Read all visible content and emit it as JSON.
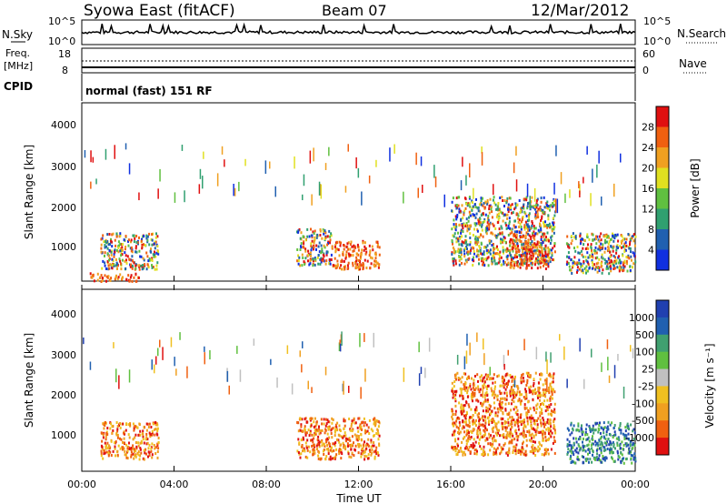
{
  "header": {
    "station": "Syowa East (fitACF)",
    "beam": "Beam 07",
    "date": "12/Mar/2012"
  },
  "top_panel": {
    "left_label": "N.Sky",
    "right_label": "N.Search",
    "left_ticks": [
      "10^5",
      "10^0"
    ],
    "right_ticks": [
      "10^5",
      "10^0"
    ]
  },
  "freq_panel": {
    "left_label_line1": "Freq.",
    "left_label_line2": "[MHz]",
    "right_label": "Nave",
    "left_ticks": [
      "18",
      "8"
    ],
    "right_ticks": [
      "60",
      "0"
    ]
  },
  "cpid_panel": {
    "label": "CPID",
    "text": "normal (fast) 151 RF"
  },
  "power_panel": {
    "ylabel": "Slant Range [km]",
    "colorbar_label": "Power [dB]",
    "colorbar_ticks": [
      "28",
      "24",
      "20",
      "16",
      "12",
      "8",
      "4"
    ],
    "colorbar_colors": [
      "#e01010",
      "#f06010",
      "#f0a020",
      "#e0e020",
      "#60c040",
      "#30a070",
      "#2060b0",
      "#1030e0"
    ]
  },
  "velocity_panel": {
    "ylabel": "Slant Range [km]",
    "colorbar_label": "Velocity [m s⁻¹]",
    "colorbar_ticks": [
      "1000",
      "500",
      "100",
      "25",
      "-25",
      "-100",
      "-500",
      "-1000"
    ],
    "colorbar_colors": [
      "#2040b0",
      "#2060b0",
      "#40a070",
      "#60c040",
      "#c0c0c0",
      "#f0c020",
      "#f0a020",
      "#f06010",
      "#e01010"
    ]
  },
  "xaxis": {
    "label": "Time UT",
    "ticks": [
      "00:00",
      "04:00",
      "08:00",
      "12:00",
      "16:00",
      "20:00",
      "00:00"
    ]
  },
  "chart_data": [
    {
      "type": "heatmap",
      "ylabel": "Slant Range [km]",
      "xlabel": "Time UT",
      "colorbar_label": "Power [dB]",
      "xlim_hours": [
        0,
        24
      ],
      "ylim": [
        180,
        4600
      ],
      "y_ticks": [
        1000,
        2000,
        3000,
        4000
      ],
      "colorbar_ticks": [
        4,
        8,
        12,
        16,
        20,
        24,
        28
      ],
      "scatter_regions": [
        {
          "t": [
            0.8,
            3.3
          ],
          "r": [
            500,
            1400
          ],
          "level": "mid"
        },
        {
          "t": [
            0.3,
            2.5
          ],
          "r": [
            200,
            400
          ],
          "level": "high"
        },
        {
          "t": [
            9.3,
            10.8
          ],
          "r": [
            600,
            1500
          ],
          "level": "mid"
        },
        {
          "t": [
            10.8,
            12.9
          ],
          "r": [
            500,
            1200
          ],
          "level": "high"
        },
        {
          "t": [
            16.0,
            20.5
          ],
          "r": [
            600,
            2300
          ],
          "level": "mid"
        },
        {
          "t": [
            18.5,
            20.2
          ],
          "r": [
            500,
            1400
          ],
          "level": "high"
        },
        {
          "t": [
            21.0,
            24.0
          ],
          "r": [
            400,
            1400
          ],
          "level": "mid"
        }
      ]
    },
    {
      "type": "heatmap",
      "ylabel": "Slant Range [km]",
      "xlabel": "Time UT",
      "colorbar_label": "Velocity [m s⁻¹]",
      "xlim_hours": [
        0,
        24
      ],
      "ylim": [
        180,
        4600
      ],
      "y_ticks": [
        1000,
        2000,
        3000,
        4000
      ],
      "colorbar_ticks": [
        -1000,
        -500,
        -100,
        -25,
        25,
        100,
        500,
        1000
      ],
      "scatter_regions": [
        {
          "t": [
            0.8,
            3.3
          ],
          "r": [
            500,
            1400
          ],
          "level": "neg"
        },
        {
          "t": [
            9.3,
            12.9
          ],
          "r": [
            500,
            1500
          ],
          "level": "neg"
        },
        {
          "t": [
            16.0,
            20.5
          ],
          "r": [
            600,
            2600
          ],
          "level": "neg"
        },
        {
          "t": [
            21.0,
            24.0
          ],
          "r": [
            400,
            1400
          ],
          "level": "pos"
        }
      ]
    }
  ]
}
